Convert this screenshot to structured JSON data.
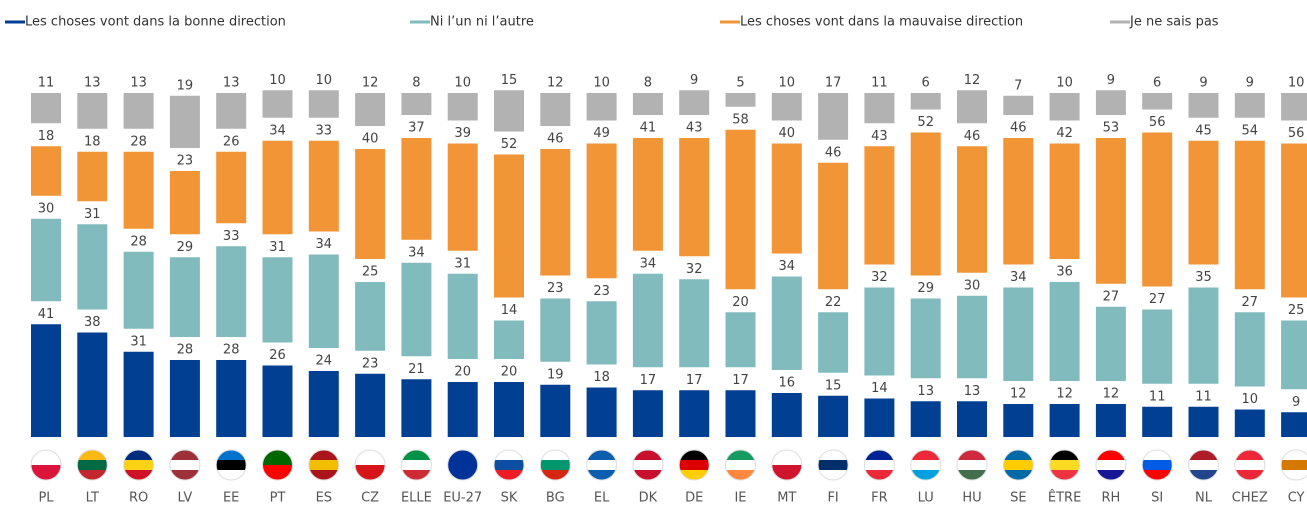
{
  "chart_data": {
    "type": "stacked-bar",
    "categories": [
      "PL",
      "LT",
      "RO",
      "LV",
      "EE",
      "PT",
      "ES",
      "CZ",
      "ELLE",
      "EU-27",
      "SK",
      "BG",
      "EL",
      "DK",
      "DE",
      "IE",
      "MT",
      "FI",
      "FR",
      "LU",
      "HU",
      "SE",
      "ÊTRE",
      "RH",
      "SI",
      "NL",
      "CHEZ",
      "CY"
    ],
    "series": [
      {
        "name": "Les choses vont dans la bonne direction",
        "color": "#003f91",
        "values": [
          41,
          38,
          31,
          28,
          28,
          26,
          24,
          23,
          21,
          20,
          20,
          19,
          18,
          17,
          17,
          17,
          16,
          15,
          14,
          13,
          13,
          12,
          12,
          12,
          11,
          11,
          10,
          9
        ]
      },
      {
        "name": "Ni l’un ni l’autre",
        "color": "#82bbbd",
        "values": [
          30,
          31,
          28,
          29,
          33,
          31,
          34,
          25,
          34,
          31,
          14,
          23,
          23,
          34,
          32,
          20,
          34,
          22,
          32,
          29,
          30,
          34,
          36,
          27,
          27,
          35,
          27,
          25
        ]
      },
      {
        "name": "Les choses vont dans la mauvaise direction",
        "color": "#f29537",
        "values": [
          18,
          18,
          28,
          23,
          26,
          34,
          33,
          40,
          37,
          39,
          52,
          46,
          49,
          41,
          43,
          58,
          40,
          46,
          43,
          52,
          46,
          46,
          42,
          53,
          56,
          45,
          54,
          56
        ]
      },
      {
        "name": "Je ne sais pas",
        "color": "#b2b2b2",
        "values": [
          11,
          13,
          13,
          19,
          13,
          10,
          10,
          12,
          8,
          10,
          15,
          12,
          10,
          8,
          9,
          5,
          10,
          17,
          11,
          6,
          12,
          7,
          10,
          9,
          6,
          9,
          9,
          10
        ]
      }
    ]
  }
}
